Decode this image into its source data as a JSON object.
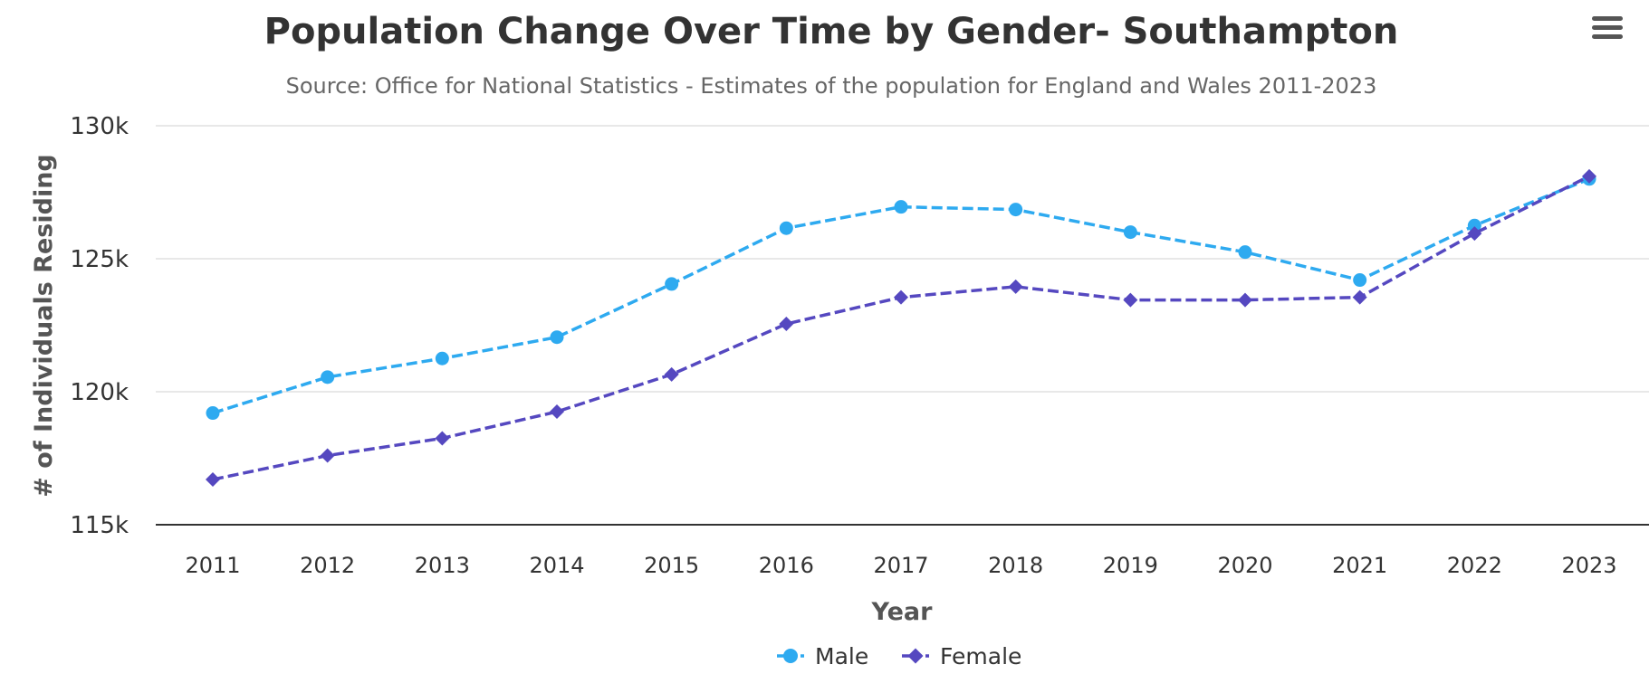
{
  "chart_data": {
    "type": "line",
    "title": "Population Change Over Time by Gender- Southampton",
    "subtitle": "Source: Office for National Statistics - Estimates of the population for England and Wales 2011-2023",
    "xlabel": "Year",
    "ylabel": "# of Individuals Residing",
    "categories": [
      "2011",
      "2012",
      "2013",
      "2014",
      "2015",
      "2016",
      "2017",
      "2018",
      "2019",
      "2020",
      "2021",
      "2022",
      "2023"
    ],
    "ylim": [
      115000,
      130000
    ],
    "y_ticks": [
      115000,
      120000,
      125000,
      130000
    ],
    "y_tick_labels": [
      "115k",
      "120k",
      "125k",
      "130k"
    ],
    "grid": true,
    "legend_position": "bottom-center",
    "series": [
      {
        "name": "Male",
        "color": "#2eaaf0",
        "marker": "circle",
        "line_style": "dashed",
        "values": [
          119200,
          120550,
          121250,
          122050,
          124050,
          126150,
          126950,
          126850,
          126000,
          125250,
          124200,
          126250,
          128000
        ]
      },
      {
        "name": "Female",
        "color": "#5548c0",
        "marker": "diamond",
        "line_style": "dashed",
        "values": [
          116700,
          117600,
          118250,
          119250,
          120650,
          122550,
          123550,
          123950,
          123450,
          123450,
          123550,
          125950,
          128100
        ]
      }
    ]
  },
  "ui": {
    "menu_icon": "hamburger-menu-icon"
  }
}
